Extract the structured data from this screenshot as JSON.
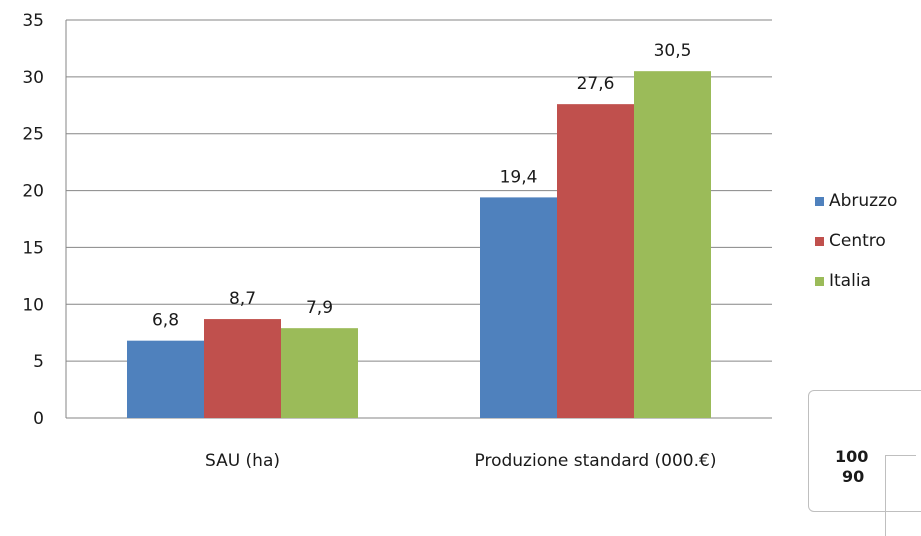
{
  "chart_data": {
    "type": "bar",
    "categories": [
      "SAU (ha)",
      "Produzione standard (000.€)"
    ],
    "series": [
      {
        "name": "Abruzzo",
        "values": [
          6.8,
          19.4
        ],
        "labels": [
          "6,8",
          "19,4"
        ],
        "color": "#4f81bd"
      },
      {
        "name": "Centro",
        "values": [
          8.7,
          27.6
        ],
        "labels": [
          "8,7",
          "27,6"
        ],
        "color": "#c0504d"
      },
      {
        "name": "Italia",
        "values": [
          7.9,
          30.5
        ],
        "labels": [
          "7,9",
          "30,5"
        ],
        "color": "#9bbb59"
      }
    ],
    "ylim": [
      0,
      35
    ],
    "yticks": [
      "0",
      "5",
      "10",
      "15",
      "20",
      "25",
      "30",
      "35"
    ],
    "grid": true,
    "legend_position": "right"
  },
  "inset": {
    "tick_top": "100",
    "tick_next": "90"
  }
}
